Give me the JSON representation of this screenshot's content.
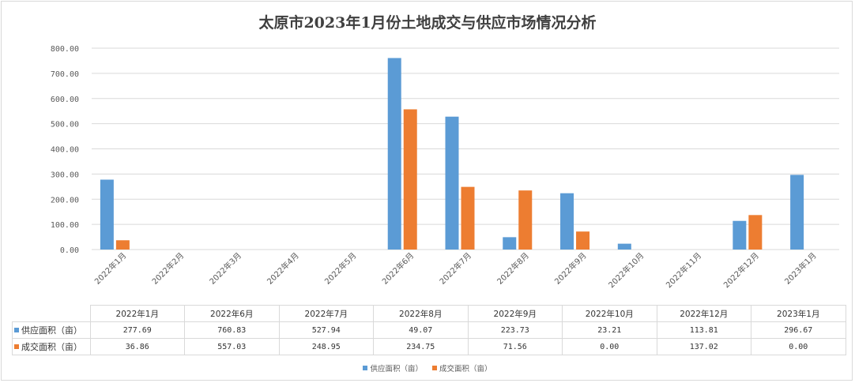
{
  "chart_data": {
    "type": "bar",
    "title": "太原市2023年1月份土地成交与供应市场情况分析",
    "categories": [
      "2022年1月",
      "2022年2月",
      "2022年3月",
      "2022年4月",
      "2022年5月",
      "2022年6月",
      "2022年7月",
      "2022年8月",
      "2022年9月",
      "2022年10月",
      "2022年11月",
      "2022年12月",
      "2023年1月"
    ],
    "series": [
      {
        "name": "供应面积（亩）",
        "color": "#5b9bd5",
        "values": [
          277.69,
          null,
          null,
          null,
          null,
          760.83,
          527.94,
          49.07,
          223.73,
          23.21,
          null,
          113.81,
          296.67
        ]
      },
      {
        "name": "成交面积（亩）",
        "color": "#ed7d31",
        "values": [
          36.86,
          null,
          null,
          null,
          null,
          557.03,
          248.95,
          234.75,
          71.56,
          0.0,
          null,
          137.02,
          0.0
        ]
      }
    ],
    "yticks": [
      "0.00",
      "100.00",
      "200.00",
      "300.00",
      "400.00",
      "500.00",
      "600.00",
      "700.00",
      "800.00"
    ],
    "ylim": [
      0,
      800
    ],
    "grid": true,
    "legend_position": "bottom",
    "table": {
      "columns": [
        "2022年1月",
        "2022年6月",
        "2022年7月",
        "2022年8月",
        "2022年9月",
        "2022年10月",
        "2022年12月",
        "2023年1月"
      ],
      "rows": [
        {
          "label": "供应面积（亩）",
          "color": "#5b9bd5",
          "cells": [
            "277.69",
            "760.83",
            "527.94",
            "49.07",
            "223.73",
            "23.21",
            "113.81",
            "296.67"
          ]
        },
        {
          "label": "成交面积（亩）",
          "color": "#ed7d31",
          "cells": [
            "36.86",
            "557.03",
            "248.95",
            "234.75",
            "71.56",
            "0.00",
            "137.02",
            "0.00"
          ]
        }
      ]
    },
    "legend": [
      "供应面积（亩）",
      "成交面积（亩）"
    ]
  }
}
